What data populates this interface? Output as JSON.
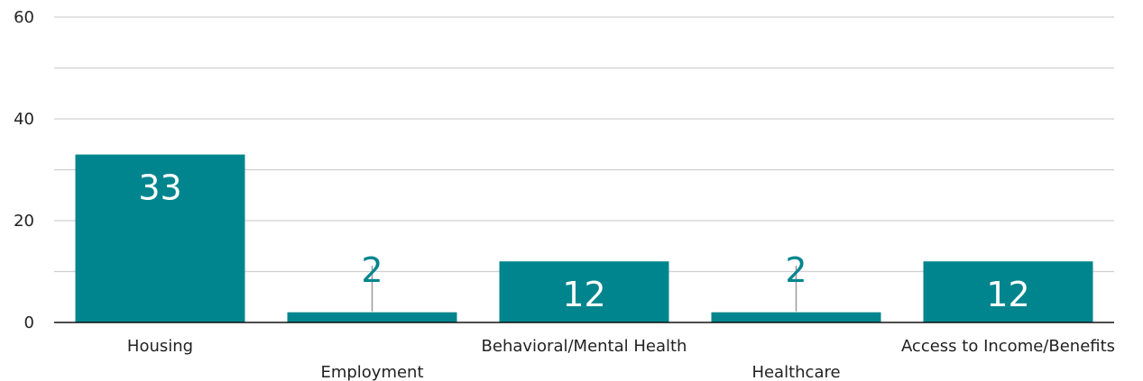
{
  "chart_data": {
    "type": "bar",
    "categories": [
      "Housing",
      "Employment",
      "Behavioral/Mental Health",
      "Healthcare",
      "Access to Income/Benefits"
    ],
    "values": [
      33,
      2,
      12,
      2,
      12
    ],
    "ylim": [
      0,
      60
    ],
    "yticks": [
      0,
      20,
      40,
      60
    ],
    "minor_gridlines": [
      10,
      30,
      50
    ],
    "grid": true,
    "title": "",
    "xlabel": "",
    "ylabel": "",
    "bar_color": "#00858E",
    "inside_label_color": "#ffffff",
    "outside_label_color": "#00858E"
  }
}
